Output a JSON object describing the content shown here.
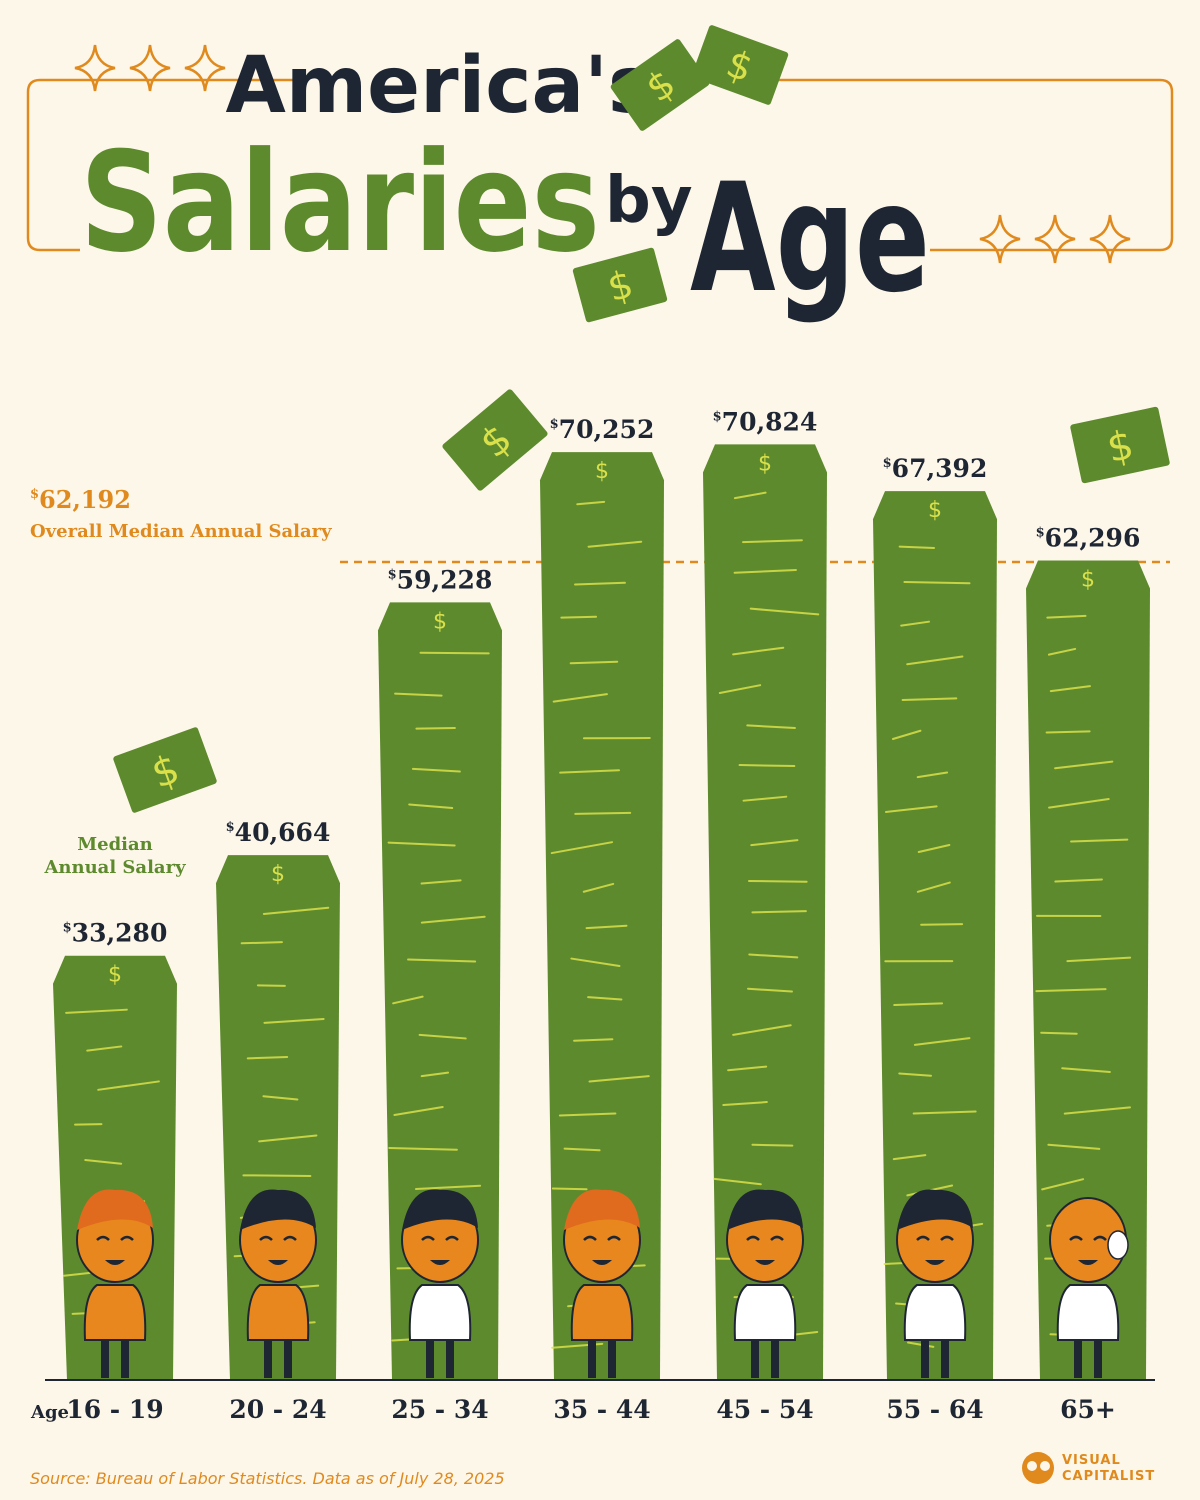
{
  "title": {
    "line1": "America's",
    "line2_big": "Salaries",
    "line2_by": "by",
    "line2_age": "Age"
  },
  "chart_data": {
    "type": "bar",
    "categories": [
      "16 - 19",
      "20 - 24",
      "25 - 34",
      "35 - 44",
      "45 - 54",
      "55 - 64",
      "65+"
    ],
    "category_prefix": "Age",
    "values": [
      33280,
      40664,
      59228,
      70252,
      70824,
      67392,
      62296
    ],
    "value_labels": [
      "33,280",
      "40,664",
      "59,228",
      "70,252",
      "70,824",
      "67,392",
      "62,296"
    ],
    "currency_symbol": "$",
    "series_label": "Median\nAnnual Salary",
    "series_label_lines": [
      "Median",
      "Annual Salary"
    ],
    "reference_line": {
      "value": 62192,
      "value_label": "62,192",
      "label": "Overall Median Annual Salary"
    },
    "ylim": [
      0,
      80000
    ],
    "grid": false
  },
  "footer": {
    "source": "Source: Bureau of Labor Statistics. Data as of July 28, 2025",
    "brand_line1": "VISUAL",
    "brand_line2": "CAPITALIST"
  },
  "colors": {
    "background": "#fdf7ea",
    "bar": "#5e8a2e",
    "bar_stroke": "#d9e04a",
    "accent": "#e08a1e",
    "text_dark": "#1f2633",
    "character": "#e8871e"
  }
}
